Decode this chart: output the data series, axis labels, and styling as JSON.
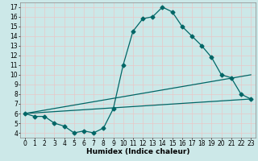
{
  "xlabel": "Humidex (Indice chaleur)",
  "bg_color": "#cce8e8",
  "grid_color": "#d8eded",
  "line_color": "#006666",
  "xlim": [
    -0.5,
    23.5
  ],
  "ylim": [
    3.5,
    17.5
  ],
  "xticks": [
    0,
    1,
    2,
    3,
    4,
    5,
    6,
    7,
    8,
    9,
    10,
    11,
    12,
    13,
    14,
    15,
    16,
    17,
    18,
    19,
    20,
    21,
    22,
    23
  ],
  "yticks": [
    4,
    5,
    6,
    7,
    8,
    9,
    10,
    11,
    12,
    13,
    14,
    15,
    16,
    17
  ],
  "line1_x": [
    0,
    1,
    2,
    3,
    4,
    5,
    6,
    7,
    8,
    9,
    10,
    11,
    12,
    13,
    14,
    15,
    16,
    17,
    18,
    19,
    20,
    21,
    22,
    23
  ],
  "line1_y": [
    6.0,
    5.7,
    5.7,
    5.0,
    4.7,
    4.0,
    4.2,
    4.0,
    4.5,
    6.5,
    11.0,
    14.5,
    15.8,
    16.0,
    17.0,
    16.5,
    15.0,
    14.0,
    13.0,
    11.8,
    10.0,
    9.7,
    8.0,
    7.5
  ],
  "line2_x": [
    0,
    23
  ],
  "line2_y": [
    6.0,
    7.5
  ],
  "line3_x": [
    0,
    23
  ],
  "line3_y": [
    6.0,
    10.0
  ],
  "markersize": 2.5,
  "linewidth": 0.9,
  "xlabel_fontsize": 6.5,
  "tick_fontsize": 5.5
}
